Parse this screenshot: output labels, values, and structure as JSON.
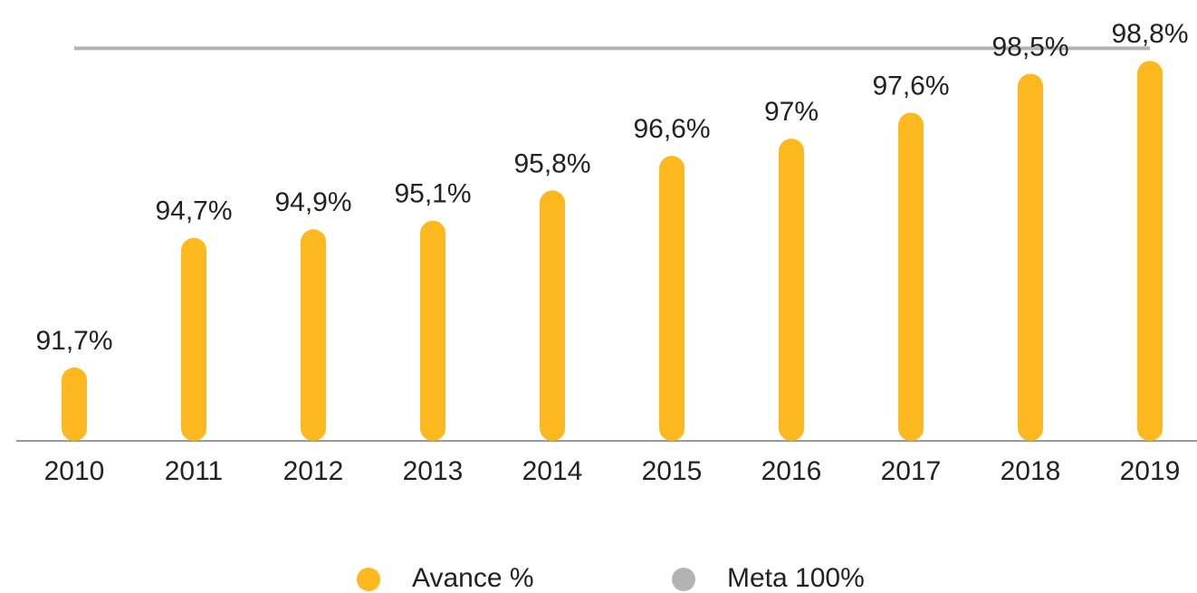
{
  "chart_data": {
    "type": "bar",
    "categories": [
      "2010",
      "2011",
      "2012",
      "2013",
      "2014",
      "2015",
      "2016",
      "2017",
      "2018",
      "2019"
    ],
    "series": [
      {
        "name": "Avance %",
        "type": "bar",
        "color": "#fdb71f",
        "values": [
          91.7,
          94.7,
          94.9,
          95.1,
          95.8,
          96.6,
          97,
          97.6,
          98.5,
          98.8
        ],
        "value_labels": [
          "91,7%",
          "94,7%",
          "94,9%",
          "95,1%",
          "95,8%",
          "96,6%",
          "97%",
          "97,6%",
          "98,5%",
          "98,8%"
        ]
      },
      {
        "name": "Meta 100%",
        "type": "line",
        "color": "#b3b3b3",
        "axis": "y2",
        "values": [
          100,
          100,
          100,
          100,
          100,
          100,
          100,
          100,
          100,
          100
        ]
      }
    ],
    "ylim": [
      90,
      100
    ],
    "y2lim": [
      0,
      110
    ]
  }
}
